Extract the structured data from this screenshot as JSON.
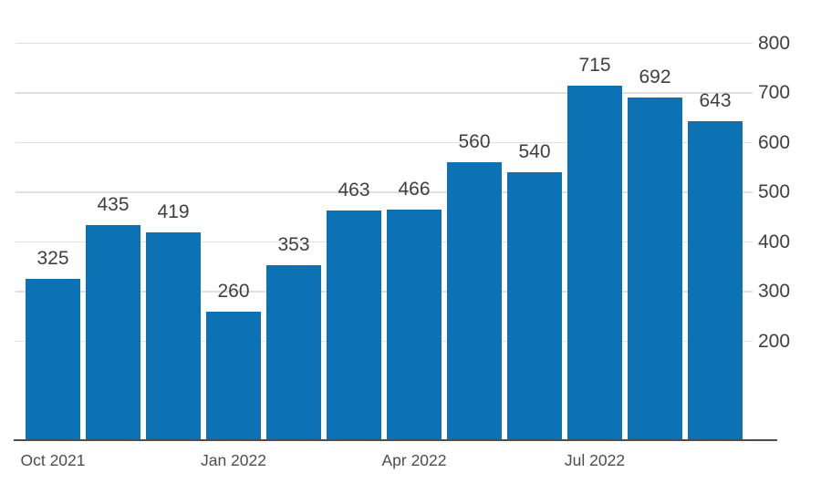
{
  "chart_data": {
    "type": "bar",
    "title": "",
    "xlabel": "",
    "ylabel": "",
    "values": [
      325,
      435,
      419,
      260,
      353,
      463,
      466,
      560,
      540,
      715,
      692,
      643
    ],
    "bar_value_labels": [
      "325",
      "435",
      "419",
      "260",
      "353",
      "463",
      "466",
      "560",
      "540",
      "715",
      "692",
      "643"
    ],
    "x_ticks": [
      {
        "bar_index": 0,
        "label": "Oct 2021"
      },
      {
        "bar_index": 3,
        "label": "Jan 2022"
      },
      {
        "bar_index": 6,
        "label": "Apr 2022"
      },
      {
        "bar_index": 9,
        "label": "Jul 2022"
      }
    ],
    "y_ticks": [
      800,
      700,
      600,
      500,
      400,
      300,
      200
    ],
    "ylim": [
      0,
      800
    ],
    "grid": true,
    "legend_position": "none",
    "y_axis_side": "right",
    "colors": {
      "bar": "#0d72b4",
      "gridline": "#e0e0e0",
      "axis_line": "#4d4d4d",
      "value_label_text": "#3f3f3f",
      "y_tick_text": "#3f3f3f",
      "x_tick_text": "#4d4d4d",
      "background": "#ffffff"
    }
  }
}
